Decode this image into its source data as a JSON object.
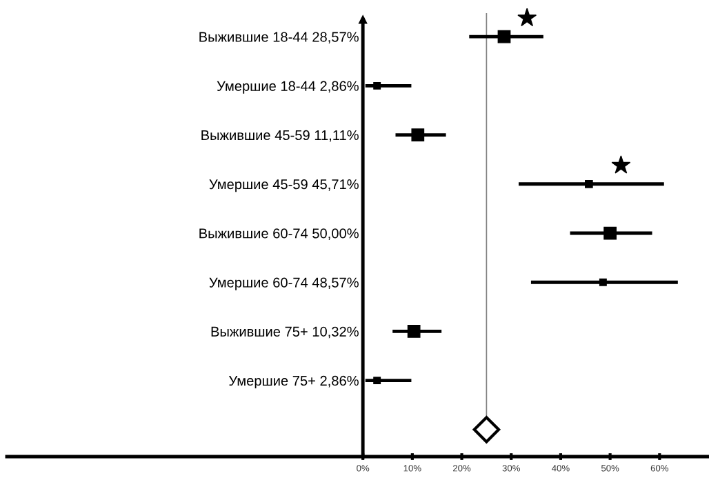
{
  "chart_data": {
    "type": "scatter",
    "orientation": "horizontal",
    "marker": "square",
    "categories": [
      "Выжившие 18-44 28,57%",
      "Умершие 18-44 2,86%",
      "Выжившие 45-59 11,11%",
      "Умершие 45-59 45,71%",
      "Выжившие 60-74 50,00%",
      "Умершие 60-74 48,57%",
      "Выжившие 75+ 10,32%",
      "Умершие 75+ 2,86%",
      null
    ],
    "series": [
      {
        "color": "#000000",
        "values": [
          28.57,
          2.86,
          11.11,
          45.71,
          50.0,
          48.57,
          10.32,
          2.86,
          null
        ],
        "sizes": [
          1,
          0.3,
          1,
          0.35,
          1,
          0.3,
          1,
          0.3,
          null
        ],
        "errors": [
          [
            21.5,
            36.5
          ],
          [
            0.5,
            9.8
          ],
          [
            6.6,
            16.8
          ],
          [
            31.5,
            60.9
          ],
          [
            41.9,
            58.5
          ],
          [
            34.0,
            63.7
          ],
          [
            6.0,
            15.9
          ],
          [
            0.5,
            9.8
          ],
          null
        ]
      },
      {
        "marker": "diamond",
        "color": "#000000",
        "values": [
          null,
          null,
          null,
          null,
          null,
          null,
          null,
          null,
          25.0
        ]
      },
      {
        "marker": "star",
        "color": "#000000",
        "values": [
          33.2,
          null,
          null,
          52.2,
          null,
          null,
          null,
          null,
          null
        ]
      }
    ],
    "ref_lines": [
      {
        "axis": "x",
        "value": 25,
        "color": "#808080"
      }
    ],
    "xlim": [
      -72,
      70
    ],
    "xticks": [
      {
        "value": 0,
        "label": "0%"
      },
      {
        "value": 10,
        "label": "10%"
      },
      {
        "value": 20,
        "label": "20%"
      },
      {
        "value": 30,
        "label": "30%"
      },
      {
        "value": 40,
        "label": "40%"
      },
      {
        "value": 50,
        "label": "50%"
      },
      {
        "value": 60,
        "label": "60%"
      }
    ],
    "grid": false,
    "legend": false
  }
}
